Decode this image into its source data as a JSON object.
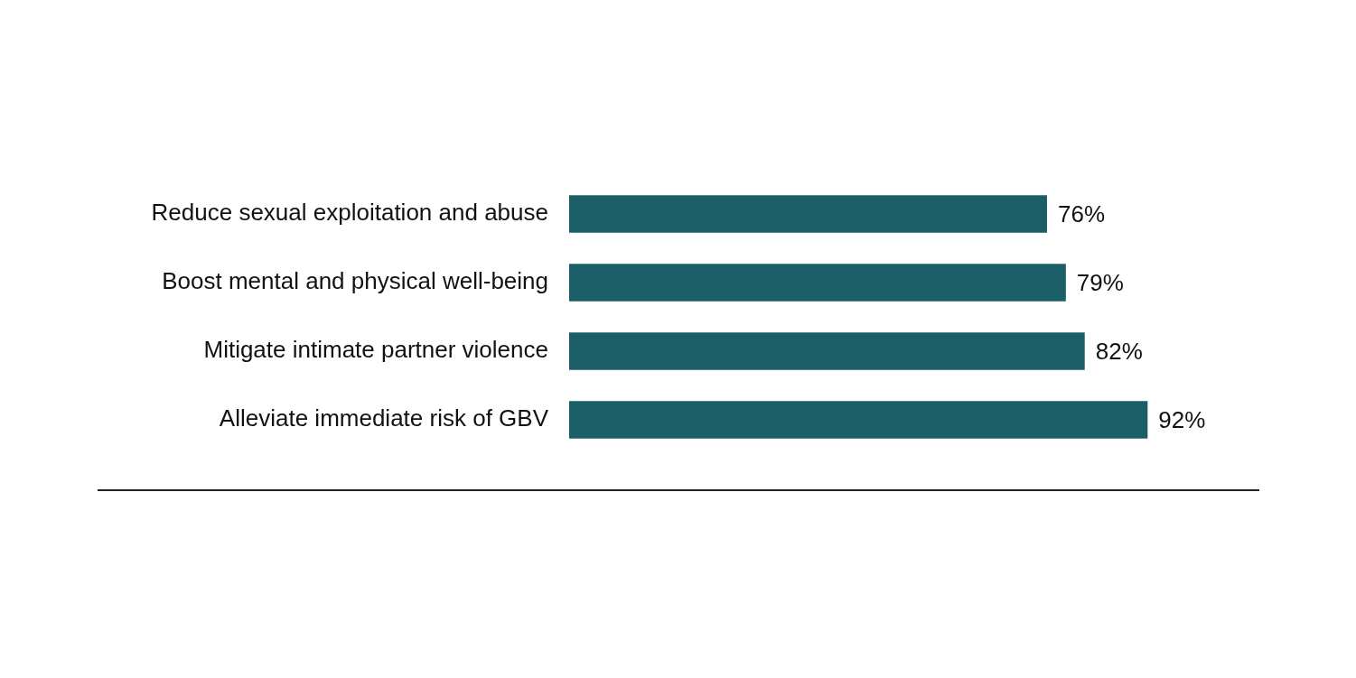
{
  "chart_data": {
    "type": "bar",
    "orientation": "horizontal",
    "categories": [
      "Reduce sexual exploitation and abuse",
      "Boost mental and physical well-being",
      "Mitigate intimate partner violence",
      "Alleviate immediate risk of GBV"
    ],
    "values": [
      76,
      79,
      82,
      92
    ],
    "color": "#1b5e68",
    "data_labels": true,
    "value_labels": [
      "76%",
      "79%",
      "82%",
      "92%"
    ],
    "tick_labels": "y"
  }
}
